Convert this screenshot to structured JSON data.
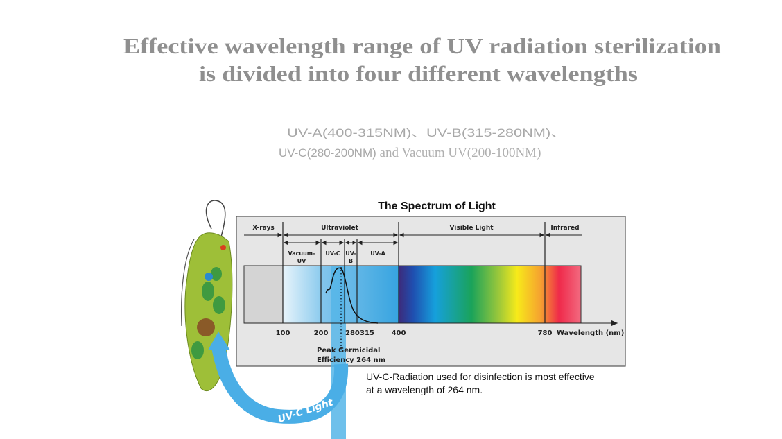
{
  "title": {
    "line1": "Effective wavelength range of UV radiation sterilization",
    "line2": "is divided into four different wavelengths"
  },
  "subtitle": {
    "line1": "UV-A(400-315NM)、UV-B(315-280NM)、",
    "line2a": "UV-C(280-200NM)",
    "line2b": " and Vacuum UV(200-100NM)"
  },
  "diagram": {
    "title": "The Spectrum of Light",
    "bands": {
      "xrays": "X-rays",
      "uv": "Ultraviolet",
      "visible": "Visible Light",
      "infrared": "Infrared"
    },
    "subbands": {
      "vuv1": "Vacuum-",
      "vuv2": "UV",
      "uvc": "UV-C",
      "uvb1": "UV-",
      "uvb2": "B",
      "uva": "UV-A"
    },
    "ticks": [
      "100",
      "200",
      "280",
      "315",
      "400",
      "780"
    ],
    "axis_label": "Wavelength (nm)",
    "peak1": "Peak Germicidal",
    "peak2": "Efficiency 264 nm",
    "arrow_label": "UV-C Light",
    "caption1": "UV-C-Radiation used for disinfection is most effective",
    "caption2": "at a wavelength of 264 nm."
  },
  "colors": {
    "title": "#8f8f8f",
    "frame": "#e6e6e6",
    "uv_blue": "#3aa7e0",
    "cell_green": "#8fb832"
  }
}
